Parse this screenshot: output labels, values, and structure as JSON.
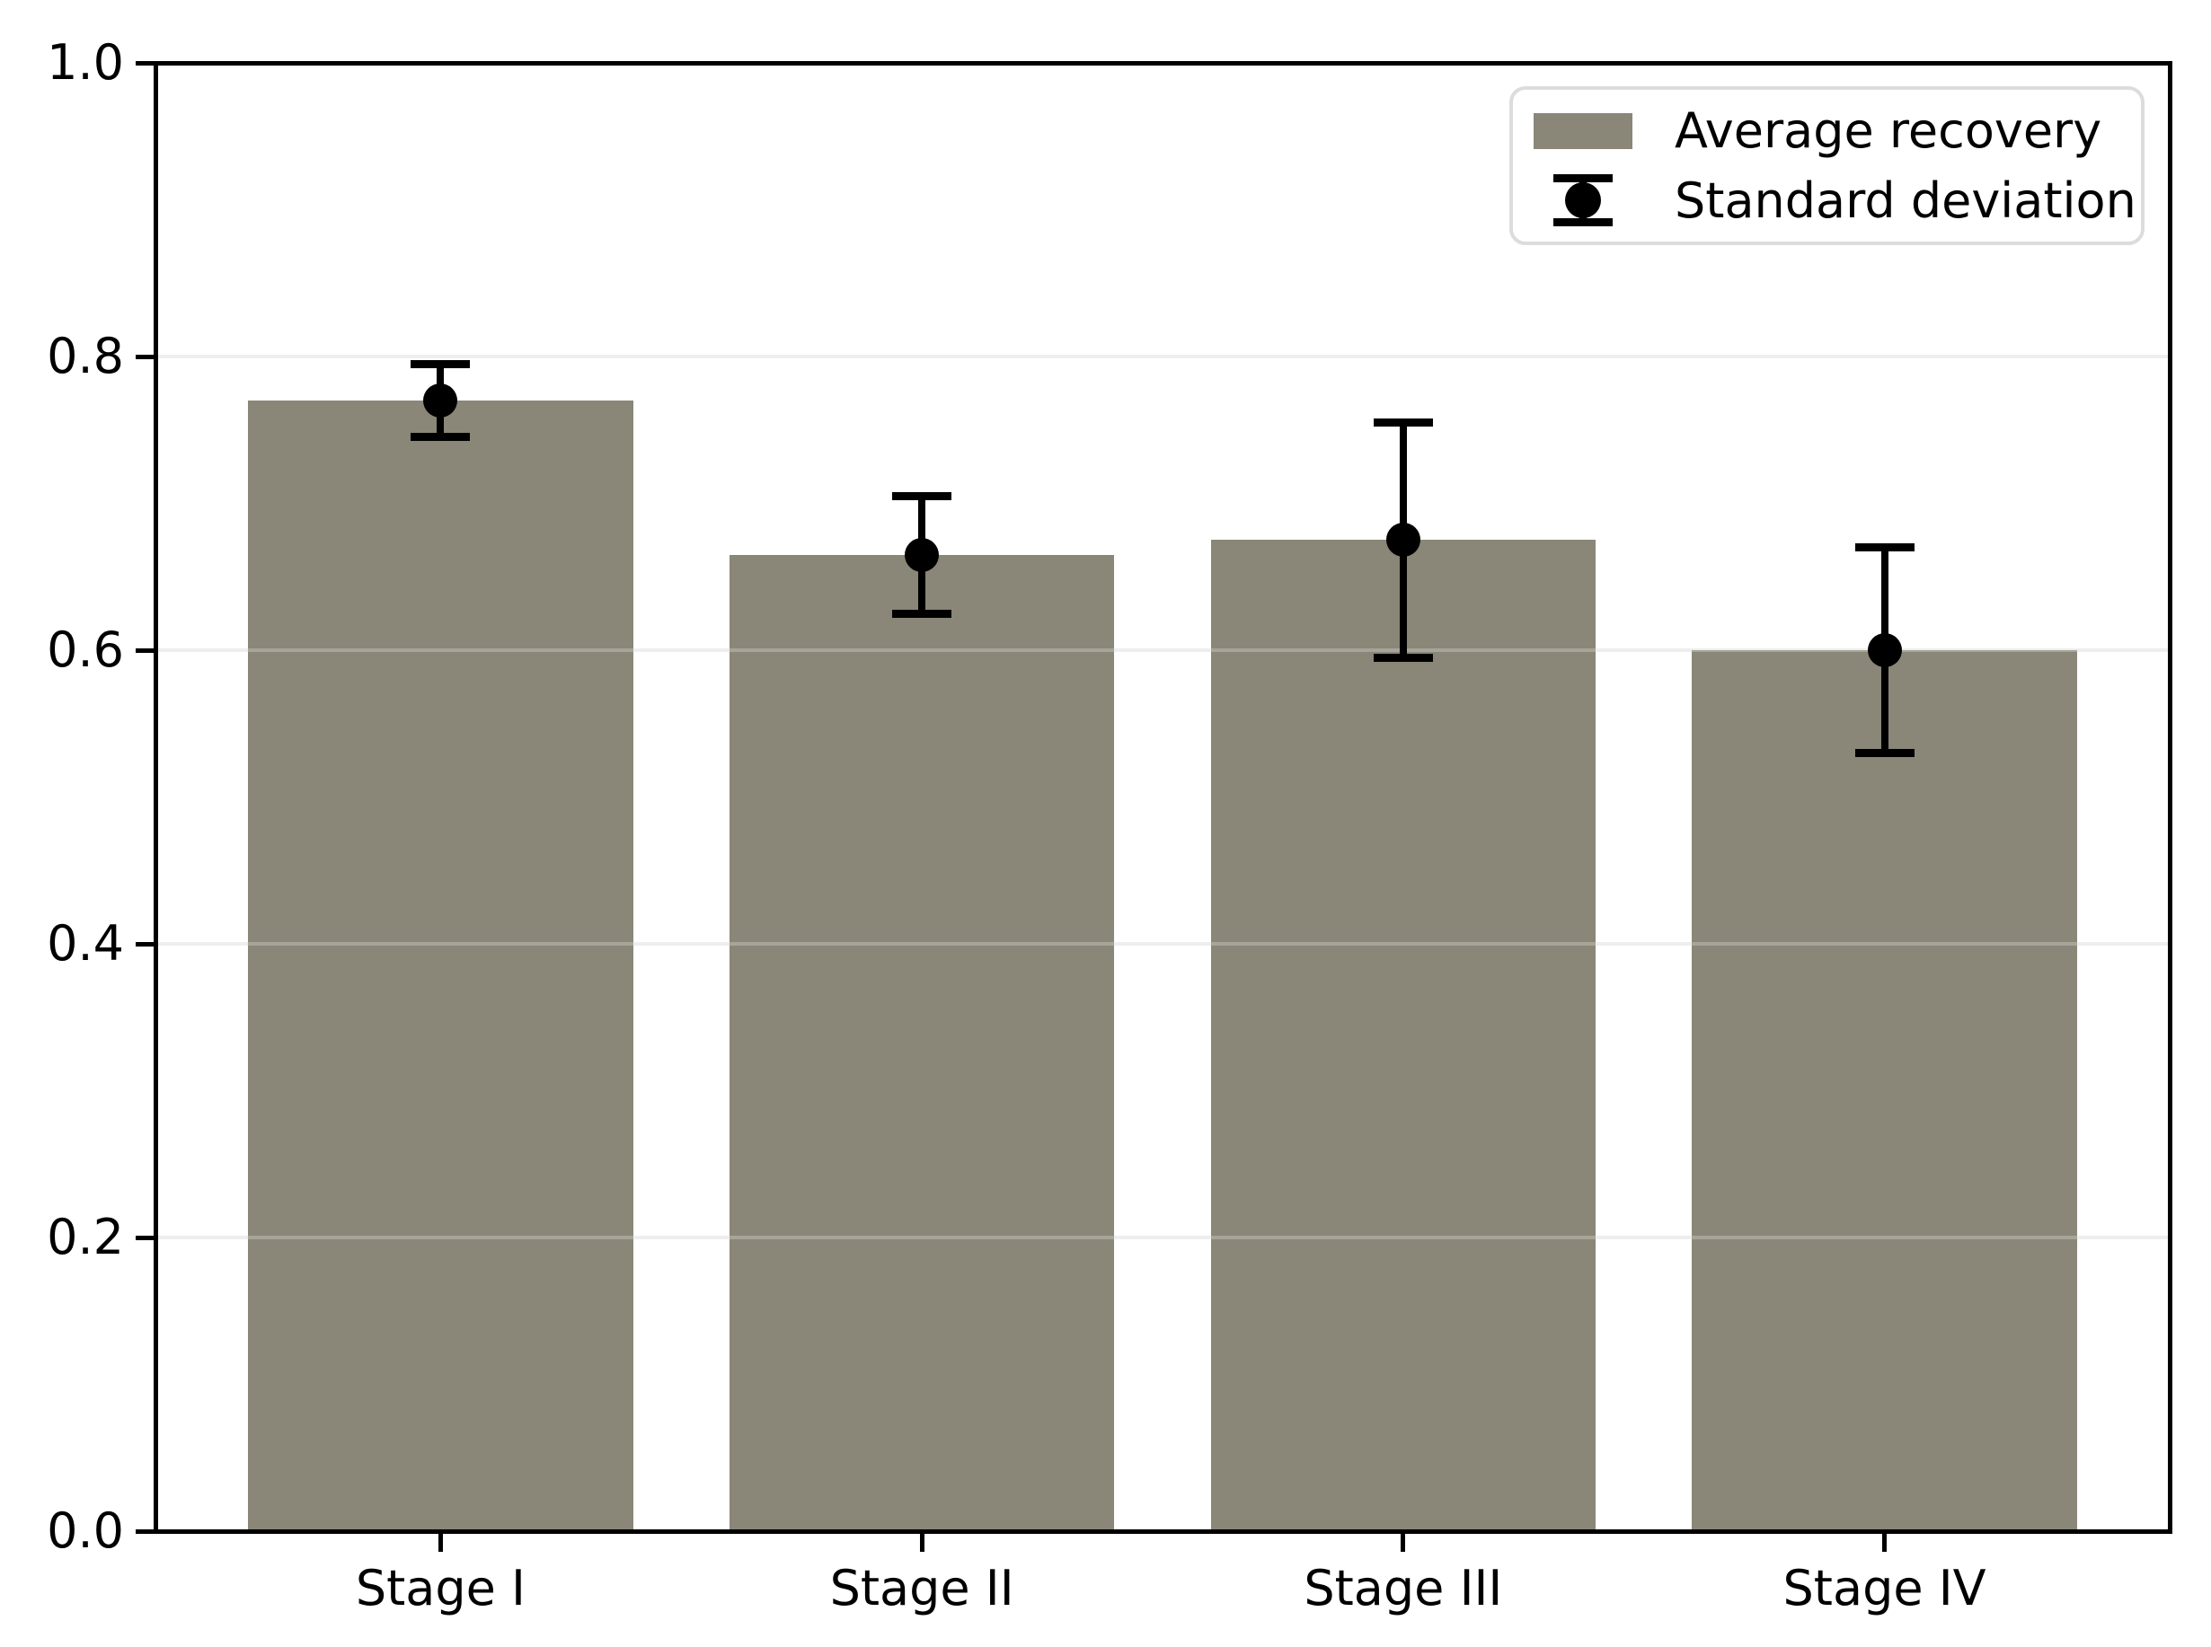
{
  "chart_data": {
    "type": "bar",
    "categories": [
      "Stage I",
      "Stage II",
      "Stage III",
      "Stage IV"
    ],
    "values": [
      0.77,
      0.665,
      0.675,
      0.6
    ],
    "errors": [
      0.025,
      0.04,
      0.08,
      0.07
    ],
    "title": "",
    "xlabel": "",
    "ylabel": "",
    "ylim": [
      0.0,
      1.0
    ],
    "yticks": [
      "0.0",
      "0.2",
      "0.4",
      "0.6",
      "0.8",
      "1.0"
    ],
    "grid": "horizontal",
    "legend": {
      "position": "upper right",
      "entries": [
        {
          "label": "Average recovery",
          "type": "patch"
        },
        {
          "label": "Standard deviation",
          "type": "errorbar"
        }
      ]
    },
    "colors": {
      "bar": "#8A8678",
      "errorbar": "#000000",
      "grid": "#E8E8E8",
      "spine": "#000000",
      "background": "#FFFFFF",
      "legend_border": "#DCDCDC"
    }
  }
}
